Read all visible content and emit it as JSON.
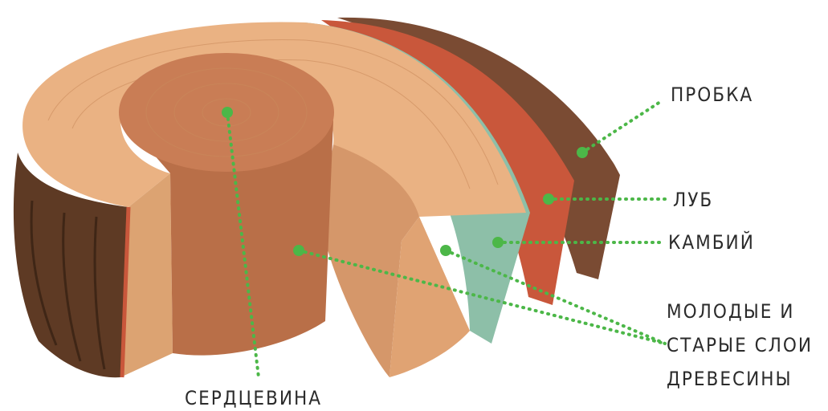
{
  "labels": {
    "cork": "ПРОБКА",
    "phloem": "ЛУБ",
    "cambium": "КАМБИЙ",
    "wood": [
      "МОЛОДЫЕ И",
      "СТАРЫЕ СЛОИ",
      "ДРЕВЕСИНЫ"
    ],
    "pith": "СЕРДЦЕВИНА"
  }
}
